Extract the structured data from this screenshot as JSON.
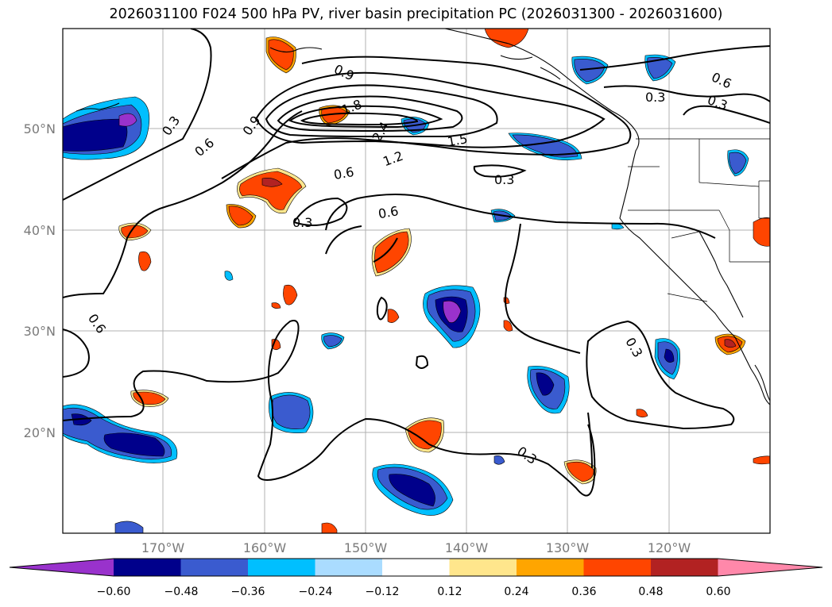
{
  "title": "2026031100 F024 500 hPa PV, river basin precipitation PC (2026031300 - 2026031600)",
  "map": {
    "lon_labels": [
      "170°W",
      "160°W",
      "150°W",
      "140°W",
      "130°W",
      "120°W"
    ],
    "lat_labels": [
      "50°N",
      "40°N",
      "30°N",
      "20°N"
    ],
    "contour_labels": [
      "0.3",
      "0.6",
      "0.9",
      "1.2",
      "1.5",
      "1.8",
      "2.4",
      "0.3",
      "0.6",
      "0.3",
      "0.3",
      "0.6",
      "0.3",
      "0.6",
      "0.9",
      "0.6",
      "0.3",
      "0.3"
    ]
  },
  "colorbar": {
    "ticks": [
      "−0.60",
      "−0.48",
      "−0.36",
      "−0.24",
      "−0.12",
      "0.12",
      "0.24",
      "0.36",
      "0.48",
      "0.60"
    ],
    "colors": [
      "#9932cc",
      "#00008b",
      "#3a5bcf",
      "#00bfff",
      "#aadcff",
      "#ffffff",
      "#ffe68c",
      "#ffa500",
      "#ff4500",
      "#b22222",
      "#ff88aa"
    ]
  },
  "colors": {
    "positive_anomaly": "#ff4500",
    "negative_anomaly": "#00008b",
    "contour": "#000000",
    "grid": "#b0b0b0"
  }
}
